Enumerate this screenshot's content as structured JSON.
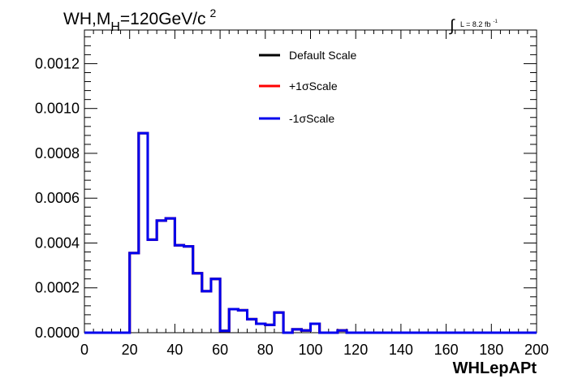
{
  "chart_data": {
    "type": "line",
    "step": true,
    "title_main": "WH,M",
    "title_sub": "H",
    "title_rest": "=120GeV/c",
    "title_sup": "2",
    "lumi_integral": "∫",
    "lumi_text": "L = 8.2 fb",
    "lumi_sup": "-1",
    "xlabel": "WHLepAPt",
    "xlim": [
      0,
      200
    ],
    "ylim": [
      0,
      0.00135
    ],
    "x_ticks": [
      "0",
      "20",
      "40",
      "60",
      "80",
      "100",
      "120",
      "140",
      "160",
      "180",
      "200"
    ],
    "y_ticks": [
      "0.0000",
      "0.0002",
      "0.0004",
      "0.0006",
      "0.0008",
      "0.0010",
      "0.0012"
    ],
    "y_tick_values": [
      0,
      0.0002,
      0.0004,
      0.0006,
      0.0008,
      0.001,
      0.0012
    ],
    "bin_edges": [
      0,
      4,
      8,
      12,
      16,
      20,
      24,
      28,
      32,
      36,
      40,
      44,
      48,
      52,
      56,
      60,
      64,
      68,
      72,
      76,
      80,
      84,
      88,
      92,
      96,
      100,
      104,
      108,
      112,
      116,
      120,
      124,
      128,
      132,
      136,
      140,
      144,
      148,
      152,
      156,
      160,
      164,
      168,
      172,
      176,
      180,
      184,
      188,
      192,
      196,
      200
    ],
    "series": [
      {
        "name": "Default Scale",
        "color": "#000000",
        "values": [
          0,
          0,
          0,
          0,
          0,
          0.000355,
          0.00089,
          0.000415,
          0.0005,
          0.00051,
          0.00039,
          0.000385,
          0.000265,
          0.000185,
          0.00024,
          8e-06,
          0.000105,
          0.0001,
          6e-05,
          4e-05,
          3.5e-05,
          9e-05,
          0,
          1.5e-05,
          1e-05,
          4e-05,
          0,
          0,
          1e-05,
          0,
          0,
          0,
          0,
          0,
          0,
          0,
          0,
          0,
          0,
          0,
          0,
          0,
          0,
          0,
          0,
          0,
          0,
          0,
          0,
          0
        ]
      },
      {
        "name": "+1σScale",
        "color": "#ff0000",
        "values": [
          0,
          0,
          0,
          0,
          0,
          0.000355,
          0.00089,
          0.000415,
          0.0005,
          0.00051,
          0.00039,
          0.000385,
          0.000265,
          0.000185,
          0.00024,
          8e-06,
          0.000105,
          0.0001,
          6e-05,
          4e-05,
          3.5e-05,
          9e-05,
          0,
          1.5e-05,
          1e-05,
          4e-05,
          0,
          0,
          1e-05,
          0,
          0,
          0,
          0,
          0,
          0,
          0,
          0,
          0,
          0,
          0,
          0,
          0,
          0,
          0,
          0,
          0,
          0,
          0,
          0,
          0
        ]
      },
      {
        "name": "-1σScale",
        "color": "#0000ee",
        "values": [
          0,
          0,
          0,
          0,
          0,
          0.000355,
          0.00089,
          0.000415,
          0.0005,
          0.00051,
          0.00039,
          0.000385,
          0.000265,
          0.000185,
          0.00024,
          8e-06,
          0.000105,
          0.0001,
          6e-05,
          4e-05,
          3.5e-05,
          9e-05,
          0,
          1.5e-05,
          1e-05,
          4e-05,
          0,
          0,
          1e-05,
          0,
          0,
          0,
          0,
          0,
          0,
          0,
          0,
          0,
          0,
          0,
          0,
          0,
          0,
          0,
          0,
          0,
          0,
          0,
          0,
          0
        ]
      }
    ],
    "legend_position": "top-center",
    "grid": false
  }
}
